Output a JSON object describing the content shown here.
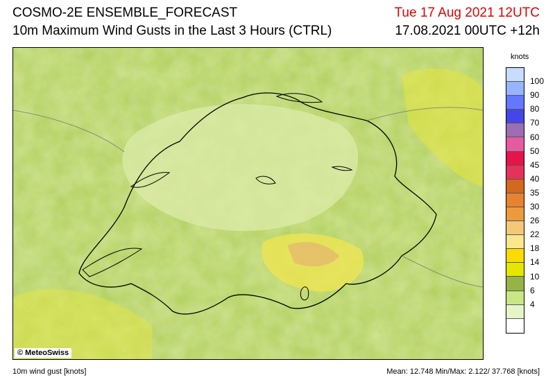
{
  "header": {
    "model_title": "COSMO-2E ENSEMBLE_FORECAST",
    "field_title": "10m Maximum Wind Gusts in the Last 3 Hours (CTRL)",
    "valid_time": "Tue 17 Aug 2021 12UTC",
    "run_time": "17.08.2021 00UTC +12h",
    "valid_time_color": "#e00000"
  },
  "map": {
    "credit": "© MeteoSwiss"
  },
  "legend": {
    "unit": "knots",
    "colors": [
      "#c8dcff",
      "#96b4ff",
      "#6478ff",
      "#4646e6",
      "#9b6eb4",
      "#e65aa0",
      "#e6144b",
      "#e6325a",
      "#d2691e",
      "#e68232",
      "#eb9b3c",
      "#f5c878",
      "#fae68c",
      "#fadc00",
      "#e6e600",
      "#96b446",
      "#c8e682",
      "#e6f5c8",
      "#ffffff"
    ],
    "labels": [
      "100",
      "90",
      "80",
      "70",
      "60",
      "50",
      "45",
      "40",
      "35",
      "30",
      "26",
      "22",
      "18",
      "14",
      "10",
      "6",
      "4"
    ]
  },
  "footer": {
    "left": "10m wind gust [knots]",
    "right": "Mean:  12.748 Min/Max:   2.122/ 37.768 [knots]"
  }
}
